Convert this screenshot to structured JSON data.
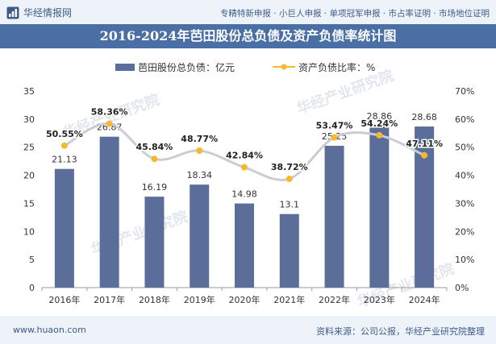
{
  "header": {
    "logo_text": "华经情报网",
    "tags": "专精特新申报 · 小巨人申报 · 单项冠军申报 · 市占率证明 · 市场地位证明"
  },
  "footer": {
    "website": "www.huaon.com",
    "source": "资料来源：公司公报，华经产业研究院整理"
  },
  "watermark": "华经产业研究院",
  "chart_data": {
    "type": "bar",
    "title": "2016-2024年芭田股份总负债及资产负债率统计图",
    "categories": [
      "2016年",
      "2017年",
      "2018年",
      "2019年",
      "2020年",
      "2021年",
      "2022年",
      "2023年",
      "2024年"
    ],
    "series": [
      {
        "name": "芭田股份总负债：亿元",
        "type": "bar",
        "axis": "left",
        "values": [
          21.13,
          26.87,
          16.19,
          18.34,
          14.98,
          13.1,
          25.25,
          28.86,
          28.68
        ],
        "labels": [
          "21.13",
          "26.87",
          "16.19",
          "18.34",
          "14.98",
          "13.1",
          "25.25",
          "28.86",
          "28.68"
        ],
        "color": "#5b6e9a"
      },
      {
        "name": "资产负债比率：%",
        "type": "line",
        "axis": "right",
        "values": [
          50.55,
          58.36,
          45.84,
          48.77,
          42.84,
          38.72,
          53.47,
          54.24,
          47.11
        ],
        "labels": [
          "50.55%",
          "58.36%",
          "45.84%",
          "48.77%",
          "42.84%",
          "38.72%",
          "53.47%",
          "54.24%",
          "47.11%"
        ],
        "color": "#f5b82e"
      }
    ],
    "y_left": {
      "min": 0,
      "max": 35,
      "ticks": [
        "0",
        "5",
        "10",
        "15",
        "20",
        "25",
        "30",
        "35"
      ]
    },
    "y_right": {
      "min": 0,
      "max": 70,
      "ticks": [
        "0%",
        "10%",
        "20%",
        "30%",
        "40%",
        "50%",
        "60%",
        "70%"
      ]
    },
    "legend_position": "top",
    "grid": false
  }
}
